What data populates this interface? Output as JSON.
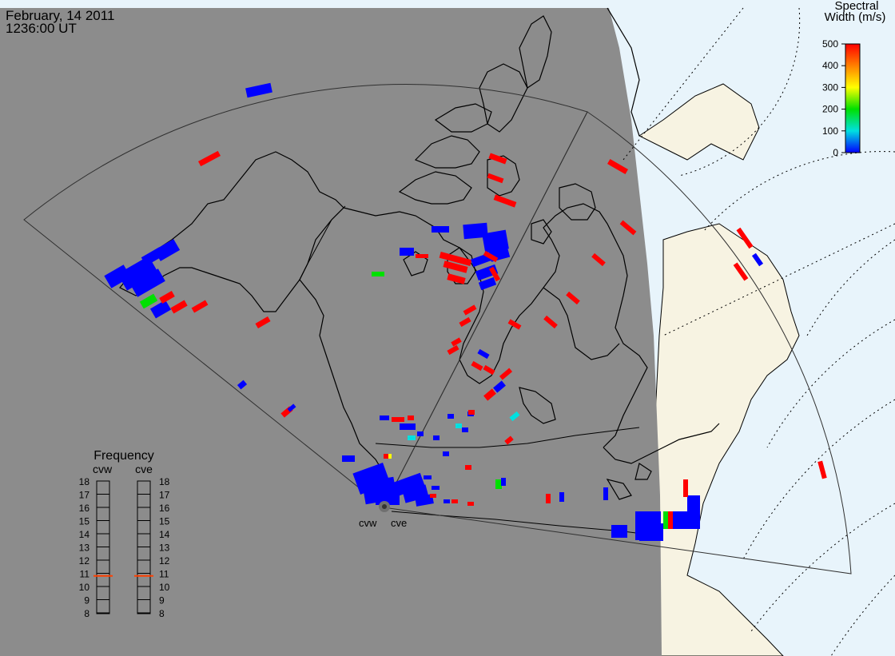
{
  "header": {
    "date": "February, 14 2011",
    "time": "1236:00 UT"
  },
  "colorbar": {
    "title_line1": "Spectral",
    "title_line2": "Width (m/s)",
    "ticks": [
      "500",
      "400",
      "300",
      "200",
      "100",
      "0"
    ],
    "colors": [
      "#ff0000",
      "#ff8000",
      "#ffff00",
      "#00e000",
      "#00e0e0",
      "#0000ff"
    ]
  },
  "frequency_panel": {
    "title": "Frequency",
    "radars": [
      "cvw",
      "cve"
    ],
    "scale_labels": [
      "18",
      "17",
      "16",
      "15",
      "14",
      "13",
      "12",
      "11",
      "10",
      "9",
      "8"
    ],
    "cvw_mhz": 10.8,
    "cve_mhz": 10.8,
    "marker_color": "#ff4000"
  },
  "radar_sites": {
    "west": "cvw",
    "east": "cve"
  },
  "colors": {
    "night": "#8c8c8c",
    "day_land": "#f7f3e2",
    "day_ocean": "#e8f4fb",
    "high": "#ff0000",
    "low": "#0000ff",
    "mid": "#00e000",
    "cyan": "#00e0e0",
    "yellow": "#ffff00"
  }
}
